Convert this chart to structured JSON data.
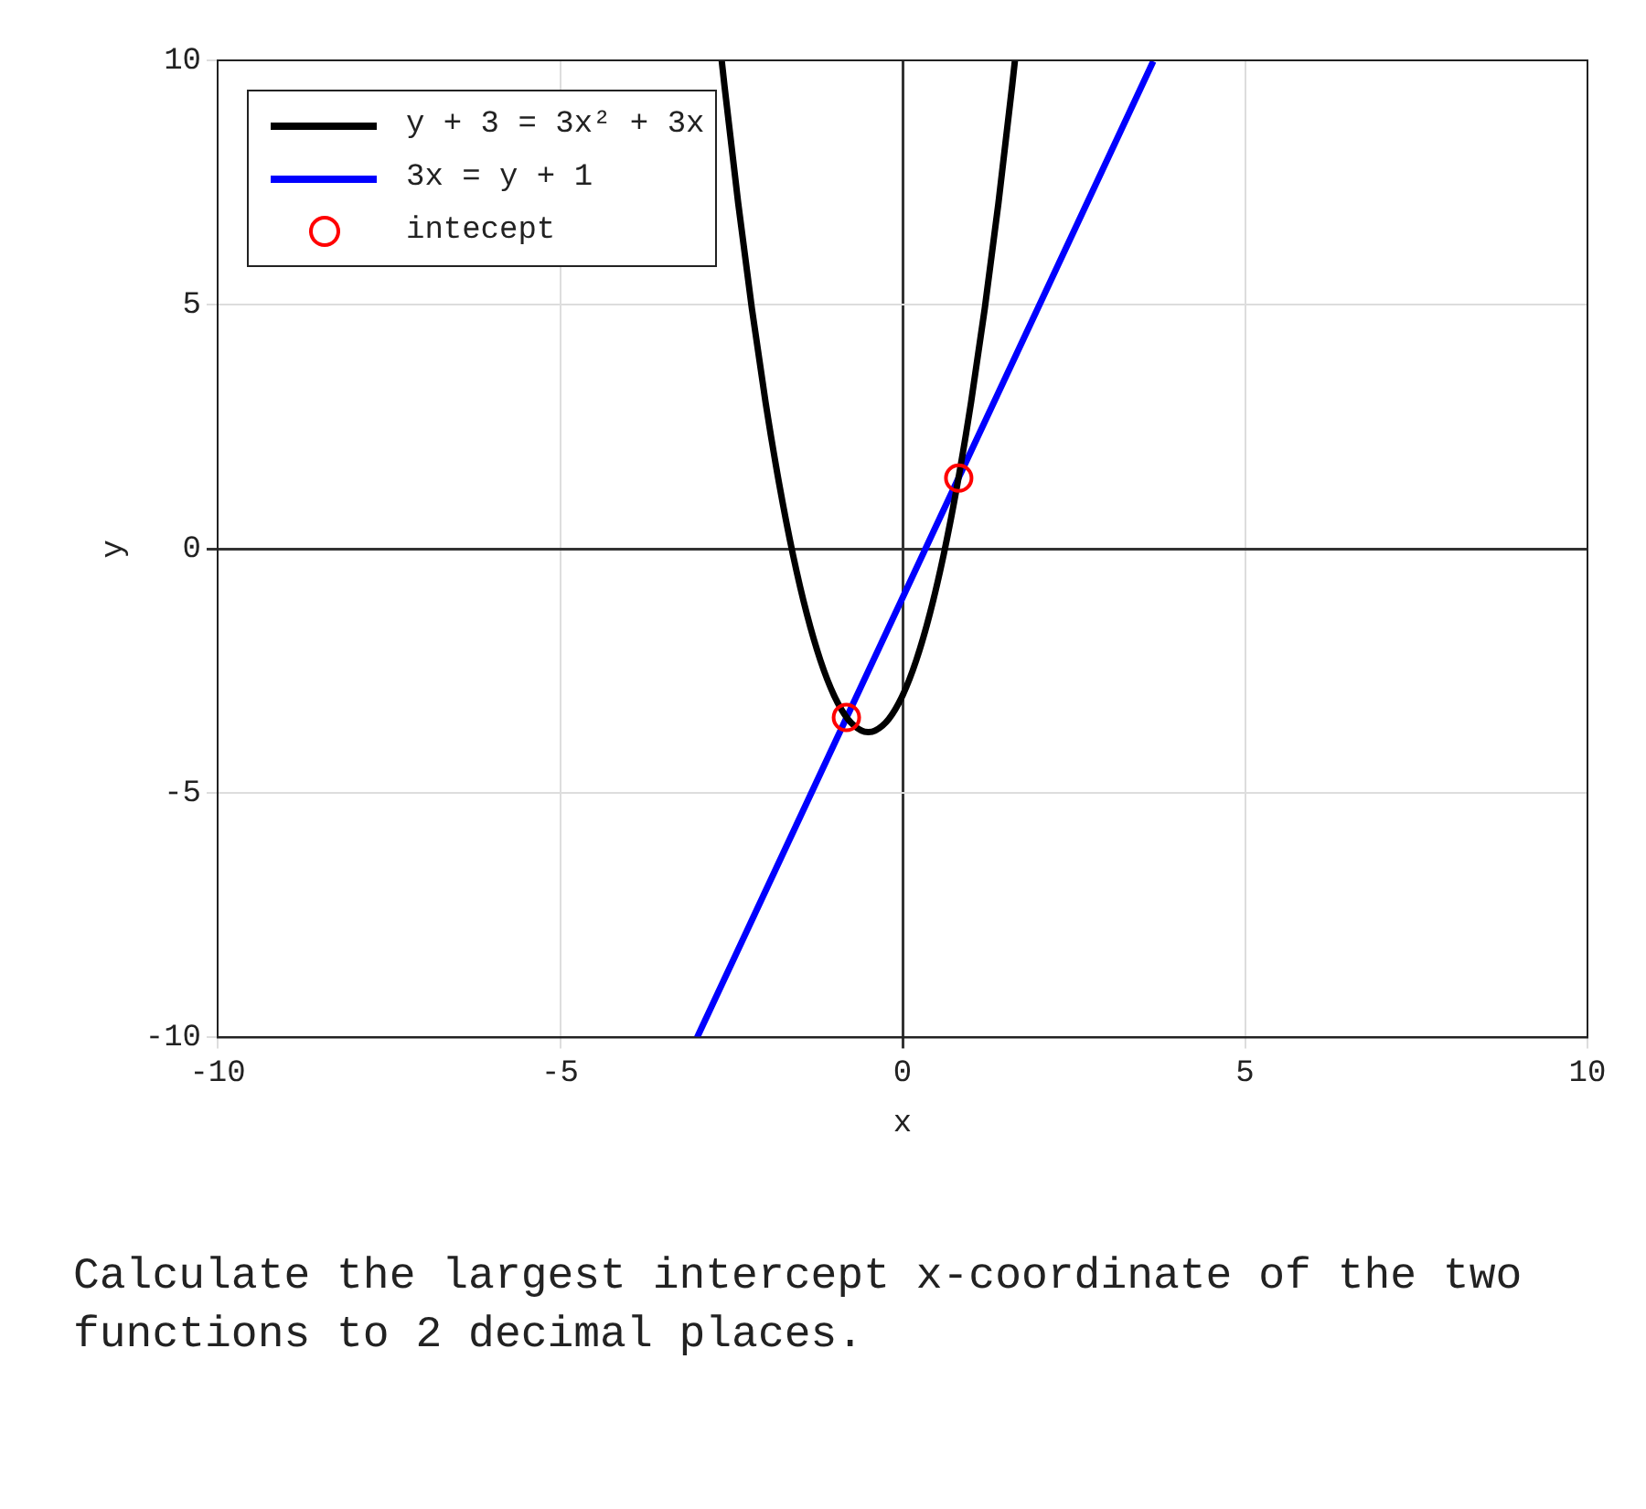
{
  "chart_data": {
    "type": "line",
    "xlabel": "x",
    "ylabel": "y",
    "xlim": [
      -10,
      10
    ],
    "xticks": [
      -10,
      -5,
      0,
      5,
      10
    ],
    "ylim": [
      -10,
      10
    ],
    "yticks": [
      -10,
      -5,
      0,
      5,
      10
    ],
    "grid": true,
    "legend": "top left",
    "marker": "none",
    "line_style": "solid",
    "series": [
      {
        "name": "y + 3 = 3x² + 3x",
        "color": "#000000",
        "x": [
          -2.64,
          -2.6,
          -2.4,
          -2.2,
          -2.0,
          -1.8,
          -1.6,
          -1.4,
          -1.2,
          -1.0,
          -0.8,
          -0.6,
          -0.5,
          -0.4,
          -0.2,
          0,
          0.2,
          0.4,
          0.6,
          0.8,
          1.0,
          1.2,
          1.4,
          1.6,
          1.64
        ],
        "values": [
          9.99,
          9.48,
          7.08,
          4.92,
          3,
          1.32,
          -0.12,
          -1.32,
          -2.28,
          -3,
          -3.48,
          -3.72,
          -3.75,
          -3.72,
          -3.48,
          -3,
          -2.28,
          -1.32,
          -0.12,
          1.32,
          3,
          4.92,
          7.08,
          9.48,
          9.99
        ]
      },
      {
        "name": "3x = y + 1",
        "color": "#0000ff",
        "x": [
          -3,
          3.66
        ],
        "values": [
          -10,
          9.98
        ]
      },
      {
        "name": "intecept",
        "type": "scatter",
        "marker": "circle",
        "color": "#ff0000",
        "x": [
          -0.82,
          0.82
        ],
        "values": [
          -3.45,
          1.45
        ]
      }
    ],
    "annotations": [
      "Calculate the largest intercept x-coordinate of the two functions to 2 decimal places."
    ]
  }
}
